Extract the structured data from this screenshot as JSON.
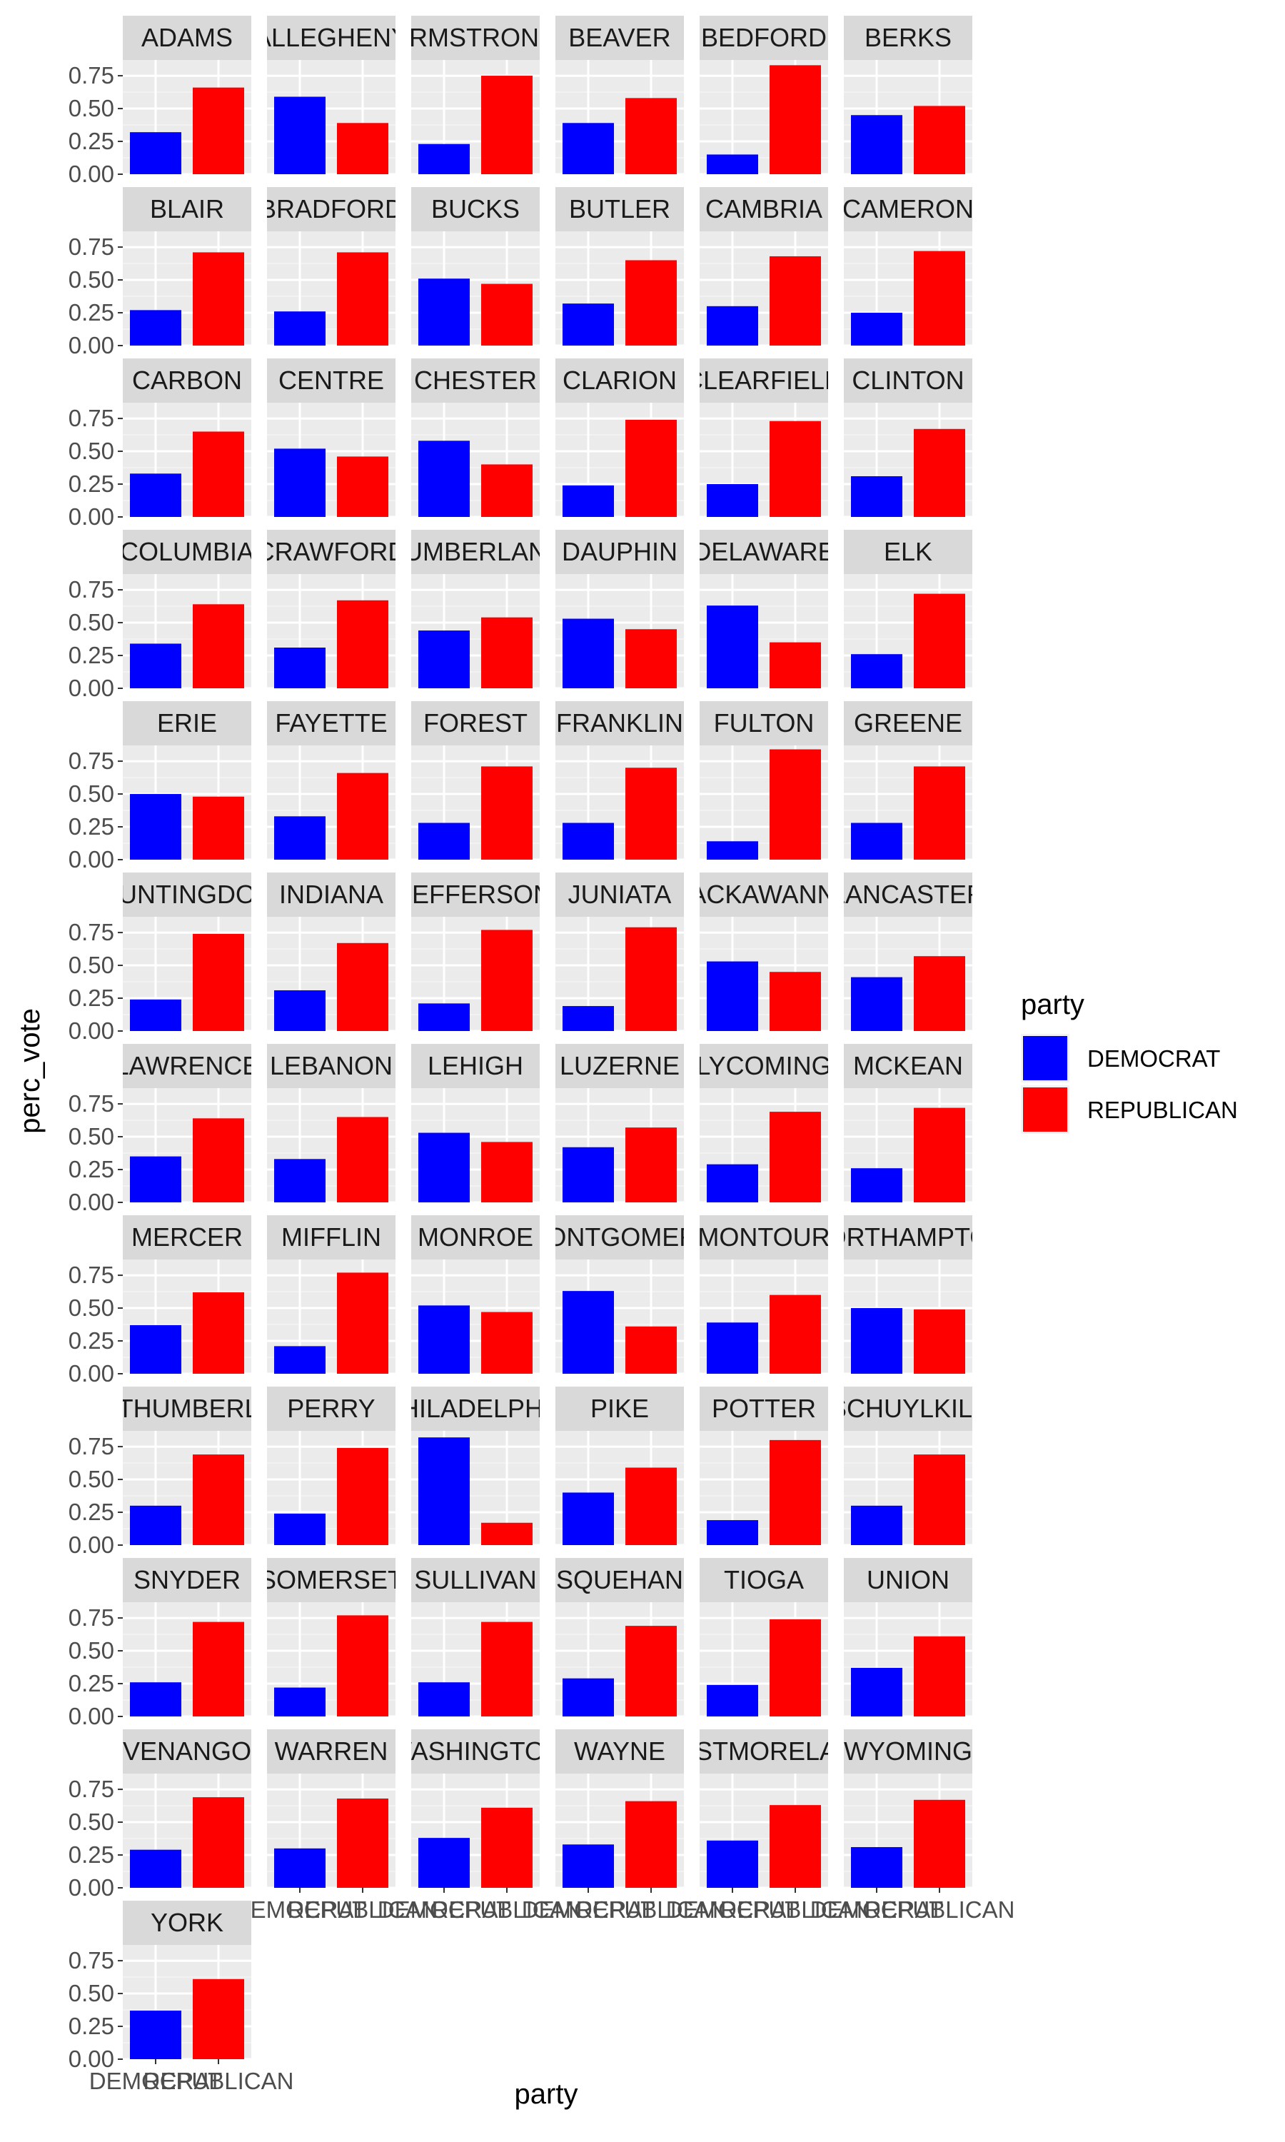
{
  "chart_data": {
    "type": "bar",
    "facet_by": "county",
    "xlabel": "party",
    "ylabel": "perc_vote",
    "categories": [
      "DEMOCRAT",
      "REPUBLICAN"
    ],
    "y_ticks": [
      "0.00",
      "0.25",
      "0.50",
      "0.75"
    ],
    "ylim": [
      0,
      0.87
    ],
    "legend": {
      "title": "party",
      "placement": "right",
      "items": [
        {
          "label": "DEMOCRAT",
          "color": "#0000ff"
        },
        {
          "label": "REPUBLICAN",
          "color": "#ff0000"
        }
      ]
    },
    "colors": {
      "DEMOCRAT": "#0000ff",
      "REPUBLICAN": "#ff0000"
    },
    "panels": [
      {
        "name": "ADAMS",
        "values": [
          0.32,
          0.66
        ]
      },
      {
        "name": "ALLEGHENY",
        "values": [
          0.59,
          0.39
        ]
      },
      {
        "name": "ARMSTRONG",
        "values": [
          0.23,
          0.75
        ]
      },
      {
        "name": "BEAVER",
        "values": [
          0.39,
          0.58
        ]
      },
      {
        "name": "BEDFORD",
        "values": [
          0.15,
          0.83
        ]
      },
      {
        "name": "BERKS",
        "values": [
          0.45,
          0.52
        ]
      },
      {
        "name": "BLAIR",
        "values": [
          0.27,
          0.71
        ]
      },
      {
        "name": "BRADFORD",
        "values": [
          0.26,
          0.71
        ]
      },
      {
        "name": "BUCKS",
        "values": [
          0.51,
          0.47
        ]
      },
      {
        "name": "BUTLER",
        "values": [
          0.32,
          0.65
        ]
      },
      {
        "name": "CAMBRIA",
        "values": [
          0.3,
          0.68
        ]
      },
      {
        "name": "CAMERON",
        "values": [
          0.25,
          0.72
        ]
      },
      {
        "name": "CARBON",
        "values": [
          0.33,
          0.65
        ]
      },
      {
        "name": "CENTRE",
        "values": [
          0.52,
          0.46
        ]
      },
      {
        "name": "CHESTER",
        "values": [
          0.58,
          0.4
        ]
      },
      {
        "name": "CLARION",
        "values": [
          0.24,
          0.74
        ]
      },
      {
        "name": "CLEARFIELD",
        "values": [
          0.25,
          0.73
        ]
      },
      {
        "name": "CLINTON",
        "values": [
          0.31,
          0.67
        ]
      },
      {
        "name": "COLUMBIA",
        "values": [
          0.34,
          0.64
        ]
      },
      {
        "name": "CRAWFORD",
        "values": [
          0.31,
          0.67
        ]
      },
      {
        "name": "CUMBERLAND",
        "values": [
          0.44,
          0.54
        ]
      },
      {
        "name": "DAUPHIN",
        "values": [
          0.53,
          0.45
        ]
      },
      {
        "name": "DELAWARE",
        "values": [
          0.63,
          0.35
        ]
      },
      {
        "name": "ELK",
        "values": [
          0.26,
          0.72
        ]
      },
      {
        "name": "ERIE",
        "values": [
          0.5,
          0.48
        ]
      },
      {
        "name": "FAYETTE",
        "values": [
          0.33,
          0.66
        ]
      },
      {
        "name": "FOREST",
        "values": [
          0.28,
          0.71
        ]
      },
      {
        "name": "FRANKLIN",
        "values": [
          0.28,
          0.7
        ]
      },
      {
        "name": "FULTON",
        "values": [
          0.14,
          0.84
        ]
      },
      {
        "name": "GREENE",
        "values": [
          0.28,
          0.71
        ]
      },
      {
        "name": "HUNTINGDON",
        "values": [
          0.24,
          0.74
        ]
      },
      {
        "name": "INDIANA",
        "values": [
          0.31,
          0.67
        ]
      },
      {
        "name": "JEFFERSON",
        "values": [
          0.21,
          0.77
        ]
      },
      {
        "name": "JUNIATA",
        "values": [
          0.19,
          0.79
        ]
      },
      {
        "name": "LACKAWANNA",
        "values": [
          0.53,
          0.45
        ]
      },
      {
        "name": "LANCASTER",
        "values": [
          0.41,
          0.57
        ]
      },
      {
        "name": "LAWRENCE",
        "values": [
          0.35,
          0.64
        ]
      },
      {
        "name": "LEBANON",
        "values": [
          0.33,
          0.65
        ]
      },
      {
        "name": "LEHIGH",
        "values": [
          0.53,
          0.46
        ]
      },
      {
        "name": "LUZERNE",
        "values": [
          0.42,
          0.57
        ]
      },
      {
        "name": "LYCOMING",
        "values": [
          0.29,
          0.69
        ]
      },
      {
        "name": "MCKEAN",
        "values": [
          0.26,
          0.72
        ]
      },
      {
        "name": "MERCER",
        "values": [
          0.37,
          0.62
        ]
      },
      {
        "name": "MIFFLIN",
        "values": [
          0.21,
          0.77
        ]
      },
      {
        "name": "MONROE",
        "values": [
          0.52,
          0.47
        ]
      },
      {
        "name": "MONTGOMERY",
        "values": [
          0.63,
          0.36
        ]
      },
      {
        "name": "MONTOUR",
        "values": [
          0.39,
          0.6
        ]
      },
      {
        "name": "NORTHAMPTON",
        "values": [
          0.5,
          0.49
        ]
      },
      {
        "name": "NORTHUMBERLAND",
        "values": [
          0.3,
          0.69
        ]
      },
      {
        "name": "PERRY",
        "values": [
          0.24,
          0.74
        ]
      },
      {
        "name": "PHILADELPHIA",
        "values": [
          0.82,
          0.17
        ]
      },
      {
        "name": "PIKE",
        "values": [
          0.4,
          0.59
        ]
      },
      {
        "name": "POTTER",
        "values": [
          0.19,
          0.8
        ]
      },
      {
        "name": "SCHUYLKILL",
        "values": [
          0.3,
          0.69
        ]
      },
      {
        "name": "SNYDER",
        "values": [
          0.26,
          0.72
        ]
      },
      {
        "name": "SOMERSET",
        "values": [
          0.22,
          0.77
        ]
      },
      {
        "name": "SULLIVAN",
        "values": [
          0.26,
          0.72
        ]
      },
      {
        "name": "SUSQUEHANNA",
        "values": [
          0.29,
          0.69
        ]
      },
      {
        "name": "TIOGA",
        "values": [
          0.24,
          0.74
        ]
      },
      {
        "name": "UNION",
        "values": [
          0.37,
          0.61
        ]
      },
      {
        "name": "VENANGO",
        "values": [
          0.29,
          0.69
        ]
      },
      {
        "name": "WARREN",
        "values": [
          0.3,
          0.68
        ]
      },
      {
        "name": "WASHINGTON",
        "values": [
          0.38,
          0.61
        ]
      },
      {
        "name": "WAYNE",
        "values": [
          0.33,
          0.66
        ]
      },
      {
        "name": "WESTMORELAND",
        "values": [
          0.36,
          0.63
        ]
      },
      {
        "name": "WYOMING",
        "values": [
          0.31,
          0.67
        ]
      },
      {
        "name": "YORK",
        "values": [
          0.37,
          0.61
        ]
      }
    ]
  }
}
